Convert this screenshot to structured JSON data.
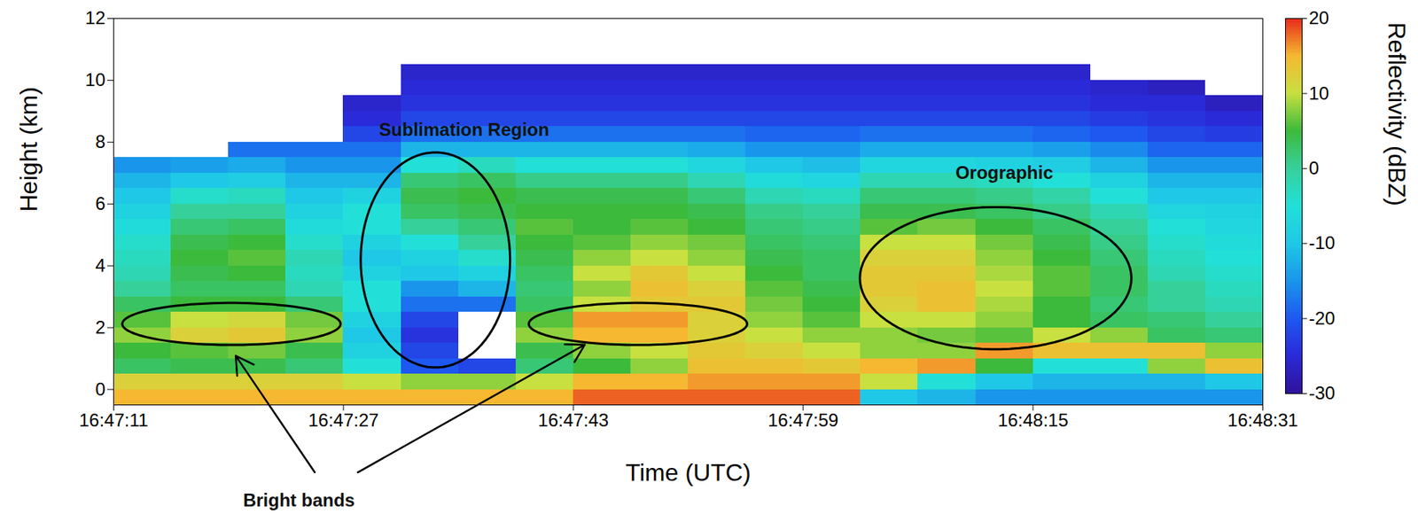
{
  "chart_data": {
    "type": "heatmap",
    "x_label": "Time (UTC)",
    "y_label": "Height (km)",
    "xlim": [
      "16:47:11",
      "16:48:31"
    ],
    "xticks": [
      "16:47:11",
      "16:47:27",
      "16:47:43",
      "16:47:59",
      "16:48:15",
      "16:48:31"
    ],
    "ylim": [
      -0.5,
      12
    ],
    "yticks": [
      0,
      2,
      4,
      6,
      8,
      10,
      12
    ],
    "annotations": [
      "Sublimation Region",
      "Orographic",
      "Bright bands"
    ],
    "colorbar": {
      "label": "Reflectivity (dBZ)",
      "lim": [
        -30,
        20
      ],
      "ticks": [
        -30,
        -20,
        -10,
        0,
        10,
        20
      ]
    },
    "heatmap": {
      "x": [
        "16:47:11",
        "16:47:15",
        "16:47:19",
        "16:47:23",
        "16:47:27",
        "16:47:31",
        "16:47:35",
        "16:47:39",
        "16:47:43",
        "16:47:47",
        "16:47:51",
        "16:47:55",
        "16:47:59",
        "16:48:03",
        "16:48:07",
        "16:48:11",
        "16:48:15",
        "16:48:19",
        "16:48:23",
        "16:48:27"
      ],
      "y": [
        -0.5,
        0,
        0.5,
        1,
        1.5,
        2,
        2.5,
        3,
        3.5,
        4,
        4.5,
        5,
        5.5,
        6,
        6.5,
        7,
        7.5,
        8,
        8.5,
        9,
        9.5,
        10,
        10.5,
        11,
        11.5
      ],
      "cells": [
        [
          15,
          12,
          3,
          5,
          8,
          6,
          3,
          0,
          -2,
          -3,
          -4,
          -6,
          -8,
          -10,
          -12,
          -15,
          null,
          null,
          null,
          null,
          null,
          null,
          null,
          null,
          null
        ],
        [
          15,
          12,
          4,
          6,
          12,
          10,
          5,
          3,
          4,
          5,
          4,
          2,
          0,
          -4,
          -10,
          -14,
          null,
          null,
          null,
          null,
          null,
          null,
          null,
          null,
          null
        ],
        [
          15,
          12,
          4,
          7,
          13,
          11,
          5,
          3,
          5,
          6,
          5,
          3,
          0,
          -3,
          -9,
          -13,
          -18,
          null,
          null,
          null,
          null,
          null,
          null,
          null,
          null
        ],
        [
          15,
          12,
          2,
          4,
          8,
          7,
          2,
          -2,
          -3,
          -2,
          -4,
          -6,
          -8,
          -10,
          -12,
          -15,
          -18,
          null,
          null,
          null,
          null,
          null,
          null,
          null,
          null
        ],
        [
          15,
          10,
          -5,
          -8,
          -10,
          -8,
          -5,
          -5,
          -8,
          -10,
          -8,
          -5,
          -5,
          -8,
          -12,
          -15,
          -18,
          -22,
          -25,
          -26,
          null,
          null,
          null,
          null,
          null
        ],
        [
          15,
          8,
          -20,
          -22,
          -24,
          -22,
          -18,
          -15,
          -10,
          -8,
          -5,
          0,
          3,
          4,
          2,
          -5,
          -12,
          -18,
          -22,
          -24,
          -25,
          -26,
          null,
          null,
          null
        ],
        [
          15,
          8,
          -22,
          null,
          null,
          null,
          -18,
          -12,
          -8,
          -4,
          0,
          2,
          4,
          5,
          3,
          -3,
          -12,
          -18,
          -22,
          -24,
          -25,
          -26,
          null,
          null,
          null
        ],
        [
          15,
          10,
          2,
          4,
          8,
          6,
          3,
          2,
          3,
          4,
          5,
          6,
          5,
          4,
          1,
          -5,
          -12,
          -18,
          -22,
          -24,
          -25,
          -26,
          null,
          null,
          null
        ],
        [
          18,
          15,
          5,
          8,
          15,
          16,
          10,
          8,
          10,
          8,
          6,
          5,
          5,
          4,
          1,
          -5,
          -12,
          -18,
          -22,
          -24,
          -25,
          -26,
          null,
          null,
          null
        ],
        [
          18,
          15,
          8,
          10,
          15,
          16,
          13,
          14,
          13,
          10,
          8,
          6,
          5,
          4,
          1,
          -5,
          -12,
          -18,
          -22,
          -24,
          -25,
          -26,
          null,
          null,
          null
        ],
        [
          18,
          16,
          14,
          13,
          12,
          12,
          13,
          12,
          10,
          8,
          7,
          5,
          4,
          2,
          -2,
          -7,
          -13,
          -18,
          -22,
          -24,
          -25,
          -26,
          null,
          null,
          null
        ],
        [
          18,
          16,
          14,
          12,
          10,
          8,
          7,
          6,
          5,
          4,
          3,
          2,
          1,
          -2,
          -6,
          -10,
          -15,
          -19,
          -22,
          -24,
          -25,
          -26,
          null,
          null,
          null
        ],
        [
          18,
          16,
          13,
          10,
          8,
          6,
          5,
          4,
          3,
          3,
          2,
          1,
          0,
          -3,
          -7,
          -11,
          -15,
          -19,
          -22,
          -24,
          -25,
          -26,
          null,
          null,
          null
        ],
        [
          -10,
          10,
          15,
          8,
          8,
          10,
          12,
          13,
          13,
          12,
          10,
          6,
          4,
          2,
          -2,
          -7,
          -13,
          -18,
          -22,
          -24,
          -25,
          -26,
          null,
          null,
          null
        ],
        [
          -12,
          -5,
          16,
          8,
          7,
          10,
          14,
          14,
          13,
          12,
          10,
          7,
          4,
          2,
          -2,
          -7,
          -13,
          -18,
          -22,
          -24,
          -25,
          -26,
          null,
          null,
          null
        ],
        [
          -15,
          -10,
          5,
          16,
          6,
          8,
          9,
          10,
          9,
          8,
          7,
          5,
          3,
          1,
          -3,
          -8,
          -13,
          -18,
          -22,
          -24,
          -25,
          -26,
          null,
          null,
          null
        ],
        [
          -15,
          -12,
          -5,
          14,
          10,
          5,
          5,
          6,
          6,
          5,
          4,
          3,
          1,
          -1,
          -5,
          -9,
          -14,
          -19,
          -22,
          -24,
          -25,
          -26,
          null,
          null,
          null
        ],
        [
          -15,
          -12,
          -5,
          14,
          8,
          3,
          2,
          3,
          3,
          2,
          1,
          0,
          -2,
          -5,
          -8,
          -12,
          -16,
          -20,
          -23,
          -25,
          -26,
          null,
          null,
          null,
          null
        ],
        [
          -15,
          -12,
          8,
          14,
          3,
          2,
          0,
          0,
          -2,
          -3,
          -4,
          -5,
          -7,
          -10,
          -12,
          -15,
          -19,
          -22,
          -24,
          -25,
          -27,
          null,
          null,
          null,
          null
        ],
        [
          -15,
          -10,
          14,
          8,
          2,
          0,
          -2,
          -3,
          -4,
          -5,
          -6,
          -7,
          -8,
          -10,
          -12,
          -15,
          -19,
          -23,
          -25,
          -27,
          null,
          null,
          null,
          null,
          null
        ]
      ]
    }
  }
}
